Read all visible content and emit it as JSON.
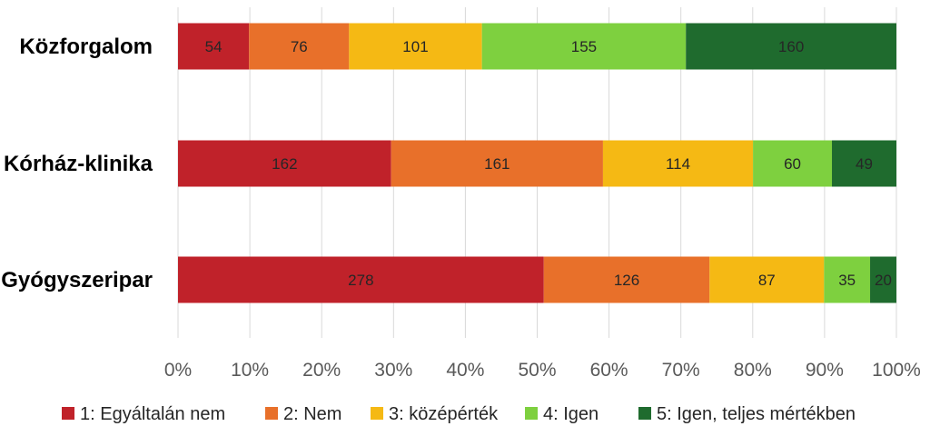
{
  "chart_data": {
    "type": "bar",
    "orientation": "horizontal",
    "stacked": "percent",
    "categories": [
      "Közforgalom",
      "Kórház-klinika",
      "Gyógyszeripar"
    ],
    "series": [
      {
        "name": "1: Egyáltalán nem",
        "color": "#c0222a",
        "values": [
          54,
          162,
          278
        ]
      },
      {
        "name": "2: Nem",
        "color": "#e8702a",
        "values": [
          76,
          161,
          126
        ]
      },
      {
        "name": "3: középérték",
        "color": "#f5b914",
        "values": [
          101,
          114,
          87
        ]
      },
      {
        "name": "4: Igen",
        "color": "#7ed03f",
        "values": [
          155,
          60,
          35
        ]
      },
      {
        "name": "5: Igen, teljes mértékben",
        "color": "#1f6b2e",
        "values": [
          160,
          49,
          20
        ]
      }
    ],
    "x_ticks": [
      "0%",
      "10%",
      "20%",
      "30%",
      "40%",
      "50%",
      "60%",
      "70%",
      "80%",
      "90%",
      "100%"
    ],
    "xlim": [
      0,
      100
    ],
    "grid": true,
    "legend": "bottom"
  }
}
